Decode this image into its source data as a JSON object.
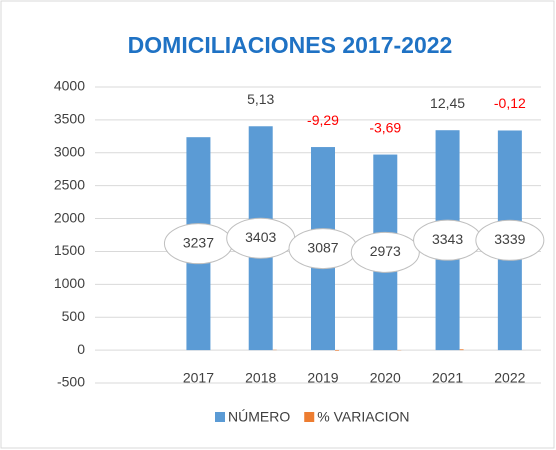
{
  "chart_data": {
    "type": "bar",
    "title": "DOMICILIACIONES 2017-2022",
    "categories": [
      null,
      "2017",
      "2018",
      "2019",
      "2020",
      "2021",
      "2022"
    ],
    "series": [
      {
        "name": "NÚMERO",
        "color": "#5b9bd5",
        "values": [
          null,
          3237,
          3403,
          3087,
          2973,
          3343,
          3339
        ]
      },
      {
        "name": "% VARIACION",
        "color": "#ed7d31",
        "values": [
          null,
          null,
          5.13,
          -9.29,
          -3.69,
          12.45,
          -0.12
        ],
        "value_labels": [
          null,
          null,
          "5,13",
          "-9,29",
          "-3,69",
          "12,45",
          "-0,12"
        ],
        "label_colors": [
          null,
          null,
          "#404040",
          "#ff0000",
          "#ff0000",
          "#404040",
          "#ff0000"
        ]
      }
    ],
    "ylim": [
      -500,
      4000
    ],
    "yticks": [
      -500,
      0,
      500,
      1000,
      1500,
      2000,
      2500,
      3000,
      3500,
      4000
    ],
    "grid": true,
    "legend": "bottom"
  }
}
